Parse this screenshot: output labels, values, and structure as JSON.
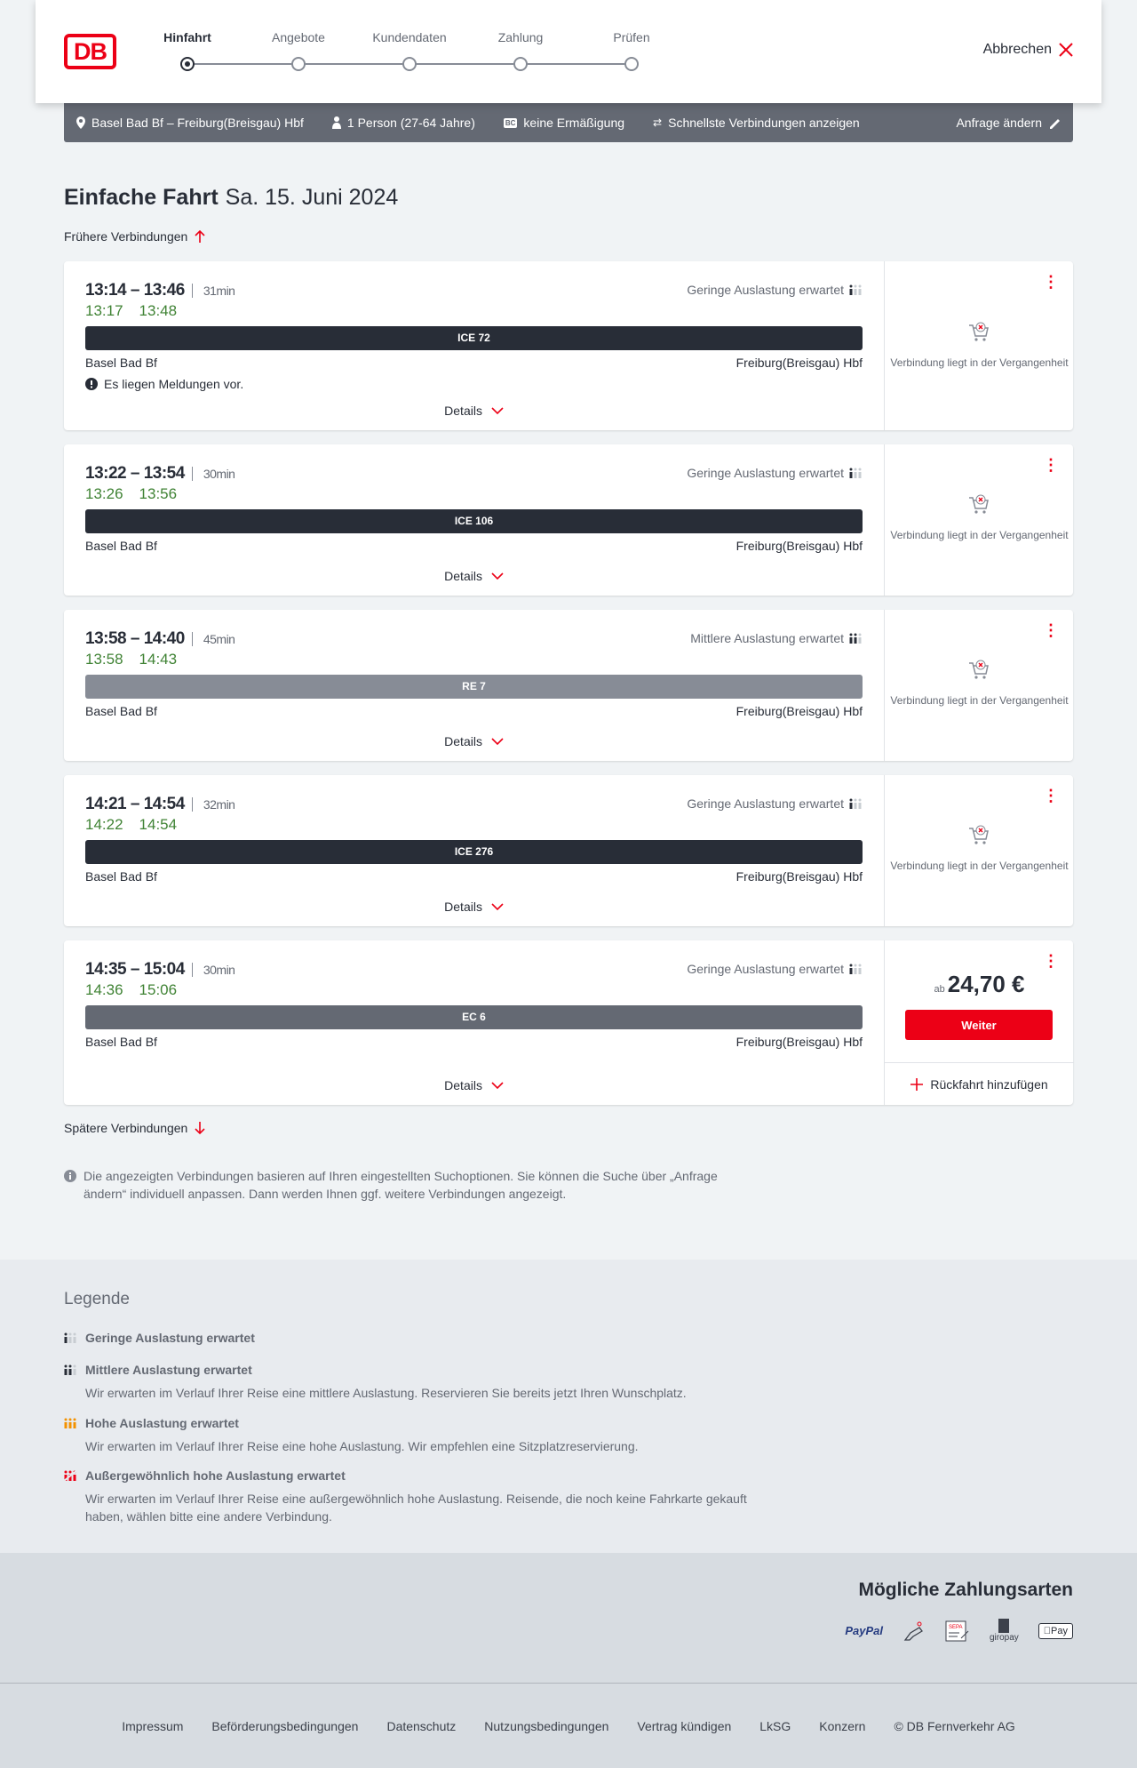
{
  "header": {
    "logo": "DB",
    "steps": [
      {
        "label": "Hinfahrt",
        "active": true
      },
      {
        "label": "Angebote"
      },
      {
        "label": "Kundendaten"
      },
      {
        "label": "Zahlung"
      },
      {
        "label": "Prüfen"
      }
    ],
    "cancel_label": "Abbrechen"
  },
  "summary": {
    "route": "Basel Bad Bf – Freiburg(Breisgau) Hbf",
    "passengers": "1 Person (27-64 Jahre)",
    "discount": "keine Ermäßigung",
    "option": "Schnellste Verbindungen anzeigen",
    "change_label": "Anfrage ändern"
  },
  "page": {
    "title": "Einfache Fahrt",
    "date": "Sa. 15. Juni 2024",
    "earlier": "Frühere Verbindungen",
    "later": "Spätere Verbindungen",
    "info": "Die angezeigten Verbindungen basieren auf Ihren eingestellten Suchoptionen. Sie können die Suche über „Anfrage ändern“ individuell anpassen. Dann werden Ihnen ggf. weitere Verbindungen angezeigt."
  },
  "connections": [
    {
      "times": "13:14 – 13:46",
      "duration": "31min",
      "rt_dep": "13:17",
      "rt_arr": "13:48",
      "occupancy": "Geringe Auslastung erwartet",
      "train": "ICE 72",
      "train_color": "#282d37",
      "from": "Basel Bad Bf",
      "to": "Freiburg(Breisgau) Hbf",
      "message": "Es liegen Meldungen vor.",
      "details": "Details",
      "status": "Verbindung liegt in der Vergangenheit"
    },
    {
      "times": "13:22 – 13:54",
      "duration": "30min",
      "rt_dep": "13:26",
      "rt_arr": "13:56",
      "occupancy": "Geringe Auslastung erwartet",
      "train": "ICE 106",
      "train_color": "#282d37",
      "from": "Basel Bad Bf",
      "to": "Freiburg(Breisgau) Hbf",
      "details": "Details",
      "status": "Verbindung liegt in der Vergangenheit"
    },
    {
      "times": "13:58 – 14:40",
      "duration": "45min",
      "rt_dep": "13:58",
      "rt_arr": "14:43",
      "occupancy": "Mittlere Auslastung erwartet",
      "train": "RE 7",
      "train_color": "#878c96",
      "from": "Basel Bad Bf",
      "to": "Freiburg(Breisgau) Hbf",
      "details": "Details",
      "status": "Verbindung liegt in der Vergangenheit"
    },
    {
      "times": "14:21 – 14:54",
      "duration": "32min",
      "rt_dep": "14:22",
      "rt_arr": "14:54",
      "occupancy": "Geringe Auslastung erwartet",
      "train": "ICE 276",
      "train_color": "#282d37",
      "from": "Basel Bad Bf",
      "to": "Freiburg(Breisgau) Hbf",
      "details": "Details",
      "status": "Verbindung liegt in der Vergangenheit"
    },
    {
      "times": "14:35 – 15:04",
      "duration": "30min",
      "rt_dep": "14:36",
      "rt_arr": "15:06",
      "occupancy": "Geringe Auslastung erwartet",
      "train": "EC 6",
      "train_color": "#646973",
      "from": "Basel Bad Bf",
      "to": "Freiburg(Breisgau) Hbf",
      "details": "Details",
      "price_prefix": "ab",
      "price": "24,70 €",
      "button": "Weiter",
      "return_label": "Rückfahrt hinzufügen"
    }
  ],
  "legend": {
    "title": "Legende",
    "items": [
      {
        "title": "Geringe Auslastung erwartet",
        "icon": "occupancy-low"
      },
      {
        "title": "Mittlere Auslastung erwartet",
        "desc": "Wir erwarten im Verlauf Ihrer Reise eine mittlere Auslastung. Reservieren Sie bereits jetzt Ihren Wunschplatz.",
        "icon": "occupancy-medium"
      },
      {
        "title": "Hohe Auslastung erwartet",
        "desc": "Wir erwarten im Verlauf Ihrer Reise eine hohe Auslastung. Wir empfehlen eine Sitzplatzreservierung.",
        "icon": "occupancy-high",
        "color": "#f39200"
      },
      {
        "title": "Außergewöhnlich hohe Auslastung erwartet",
        "desc": "Wir erwarten im Verlauf Ihrer Reise eine außergewöhnlich hohe Auslastung. Reisende, die noch keine Fahrkarte gekauft haben, wählen bitte eine andere Verbindung.",
        "icon": "occupancy-exceptional",
        "color": "#ec0016"
      }
    ]
  },
  "payment": {
    "title": "Mögliche Zahlungsarten",
    "methods": [
      "PayPal",
      "Kreditkarte",
      "SEPA",
      "giropay",
      "Pay"
    ]
  },
  "footer": {
    "links": [
      "Impressum",
      "Beförderungsbedingungen",
      "Datenschutz",
      "Nutzungsbedingungen",
      "Vertrag kündigen",
      "LkSG",
      "Konzern",
      "© DB Fernverkehr AG"
    ]
  },
  "colors": {
    "brand": "#ec0016",
    "realtime": "#408335",
    "dark": "#282d37"
  }
}
